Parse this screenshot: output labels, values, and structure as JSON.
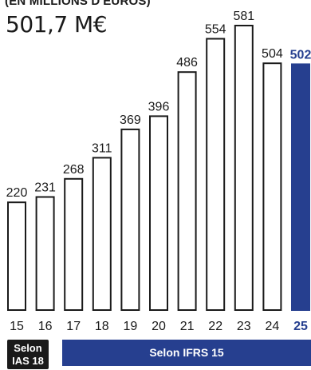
{
  "chart_data": {
    "type": "bar",
    "title": "(EN MILLIONS D'EUROS)",
    "headline_value": "501,7 M€",
    "categories": [
      "15",
      "16",
      "17",
      "18",
      "19",
      "20",
      "21",
      "22",
      "23",
      "24",
      "25"
    ],
    "values": [
      220,
      231,
      268,
      311,
      369,
      396,
      486,
      554,
      581,
      504,
      502
    ],
    "value_labels": [
      "220",
      "231",
      "268",
      "311",
      "369",
      "396",
      "486",
      "554",
      "581",
      "504",
      "502"
    ],
    "highlight_index": 10,
    "ylim": [
      0,
      581
    ],
    "grid": false,
    "legend": "none",
    "standards": {
      "ias18": {
        "line1": "Selon",
        "line2": "IAS 18",
        "categories": [
          "15",
          "16"
        ]
      },
      "ifrs15": {
        "label": "Selon IFRS 15",
        "categories": [
          "17",
          "18",
          "19",
          "20",
          "21",
          "22",
          "23",
          "24",
          "25"
        ]
      }
    },
    "colors": {
      "bar_fill": "#ffffff",
      "bar_stroke": "#1a1a1a",
      "highlight": "#263f8f",
      "ias18_box": "#1a1a1a",
      "ifrs15_band": "#263f8f",
      "text": "#1a1a1a"
    }
  }
}
